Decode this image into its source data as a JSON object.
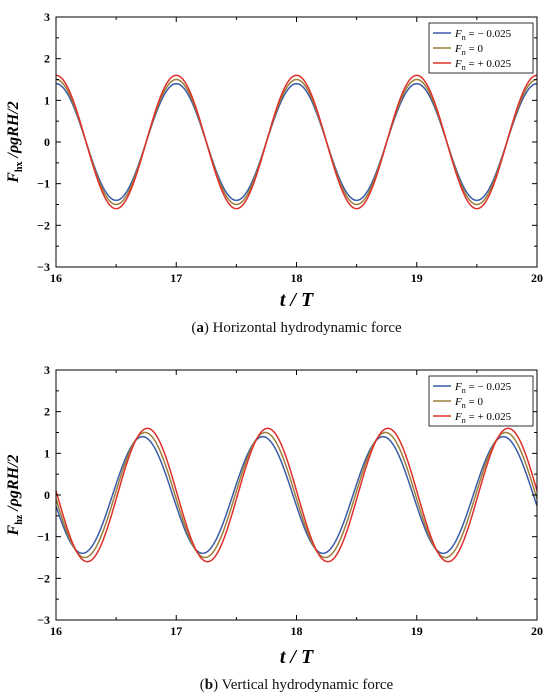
{
  "chart_data": [
    {
      "type": "line",
      "ylabel_main": "F",
      "ylabel_sub": "hx",
      "ylabel_rest": " /ρgRH/2",
      "xlabel": "t / T",
      "xlim": [
        16,
        20
      ],
      "ylim": [
        -3,
        3
      ],
      "xticks": [
        "16",
        "17",
        "18",
        "19",
        "20"
      ],
      "yticks": [
        "−3",
        "−2",
        "−1",
        "0",
        "1",
        "2",
        "3"
      ],
      "grid": false,
      "legend_position": "top-right",
      "caption_letter": "a",
      "caption_text": " Horizontal hydrodynamic force",
      "period": 1,
      "series": [
        {
          "name_main": "F",
          "name_sub": "n",
          "name_rest": " = − 0.025",
          "amplitude": 1.4,
          "phase": 0,
          "color": "#3a5ba8"
        },
        {
          "name_main": "F",
          "name_sub": "n",
          "name_rest": " =    0",
          "amplitude": 1.5,
          "phase": 0,
          "color": "#9b7f3a"
        },
        {
          "name_main": "F",
          "name_sub": "n",
          "name_rest": " = + 0.025",
          "amplitude": 1.6,
          "phase": 0,
          "color": "#e0302a"
        }
      ]
    },
    {
      "type": "line",
      "ylabel_main": "F",
      "ylabel_sub": "hz",
      "ylabel_rest": " /ρgRH/2",
      "xlabel": "t / T",
      "xlim": [
        16,
        20
      ],
      "ylim": [
        -3,
        3
      ],
      "xticks": [
        "16",
        "17",
        "18",
        "19",
        "20"
      ],
      "yticks": [
        "−3",
        "−2",
        "−1",
        "0",
        "1",
        "2",
        "3"
      ],
      "grid": false,
      "legend_position": "top-right",
      "caption_letter": "b",
      "caption_text": " Vertical hydrodynamic force",
      "period": 1,
      "series": [
        {
          "name_main": "F",
          "name_sub": "n",
          "name_rest": " = − 0.025",
          "amplitude": 1.4,
          "phase": 0.02,
          "color": "#3a5ba8"
        },
        {
          "name_main": "F",
          "name_sub": "n",
          "name_rest": " =    0",
          "amplitude": 1.5,
          "phase": 0,
          "color": "#9b7f3a"
        },
        {
          "name_main": "F",
          "name_sub": "n",
          "name_rest": " = + 0.025",
          "amplitude": 1.6,
          "phase": -0.02,
          "color": "#e0302a"
        }
      ]
    }
  ]
}
